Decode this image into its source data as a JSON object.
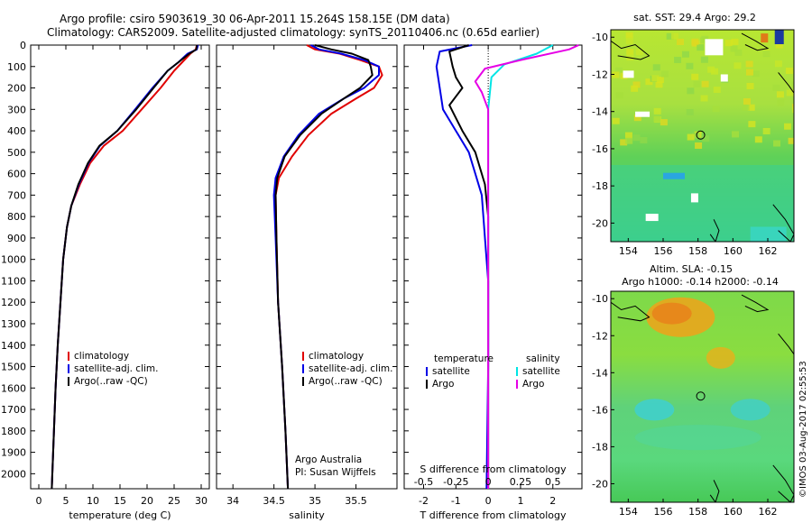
{
  "header": {
    "line1": "Argo profile: csiro 5903619_30 06-Apr-2011 15.264S 158.15E (DM data)",
    "line2": "Climatology: CARS2009. Satellite-adjusted climatology: synTS_20110406.nc (0.65d earlier)"
  },
  "footer_credit": "©IMOS 03-Aug-2017 02:55:53",
  "colors": {
    "climatology": "#e00000",
    "satellite": "#0000e6",
    "argo": "#000000",
    "satellite_sal": "#00e5e5",
    "argo_sal": "#e600e6"
  },
  "depth_axis": {
    "ticks": [
      0,
      100,
      200,
      300,
      400,
      500,
      600,
      700,
      800,
      900,
      1000,
      1100,
      1200,
      1300,
      1400,
      1500,
      1600,
      1700,
      1800,
      1900,
      2000
    ],
    "range": [
      0,
      2070
    ]
  },
  "chart_data": [
    {
      "type": "line",
      "id": "temperature",
      "xlabel": "temperature (deg C)",
      "xlim": [
        -1.5,
        31.5
      ],
      "xticks": [
        0,
        5,
        10,
        15,
        20,
        25,
        30
      ],
      "ylim": [
        0,
        2070
      ],
      "legend": [
        "climatology",
        "satellite-adj. clim.",
        "Argo(..raw -QC)"
      ],
      "series": [
        {
          "name": "climatology",
          "color": "#e00000",
          "points": [
            [
              29.2,
              0
            ],
            [
              29.0,
              20
            ],
            [
              28.0,
              40
            ],
            [
              26.5,
              80
            ],
            [
              25.0,
              120
            ],
            [
              22.5,
              200
            ],
            [
              19.0,
              300
            ],
            [
              15.5,
              400
            ],
            [
              12.0,
              470
            ],
            [
              9.5,
              550
            ],
            [
              7.6,
              650
            ],
            [
              6.0,
              750
            ],
            [
              5.2,
              850
            ],
            [
              4.5,
              1000
            ],
            [
              4.0,
              1200
            ],
            [
              3.5,
              1400
            ],
            [
              3.1,
              1600
            ],
            [
              2.8,
              1800
            ],
            [
              2.5,
              2000
            ],
            [
              2.4,
              2070
            ]
          ]
        },
        {
          "name": "satellite-adj. clim.",
          "color": "#0000e6",
          "points": [
            [
              29.4,
              0
            ],
            [
              29.2,
              20
            ],
            [
              27.5,
              40
            ],
            [
              25.8,
              80
            ],
            [
              23.8,
              120
            ],
            [
              21.0,
              200
            ],
            [
              17.8,
              300
            ],
            [
              14.5,
              400
            ],
            [
              11.3,
              470
            ],
            [
              9.2,
              550
            ],
            [
              7.4,
              650
            ],
            [
              6.0,
              750
            ],
            [
              5.2,
              850
            ],
            [
              4.5,
              1000
            ],
            [
              4.0,
              1200
            ],
            [
              3.5,
              1400
            ],
            [
              3.1,
              1600
            ],
            [
              2.8,
              1800
            ],
            [
              2.5,
              2000
            ],
            [
              2.4,
              2070
            ]
          ]
        },
        {
          "name": "Argo(..raw -QC)",
          "color": "#000000",
          "points": [
            [
              29.2,
              0
            ],
            [
              29.1,
              20
            ],
            [
              27.8,
              40
            ],
            [
              25.8,
              80
            ],
            [
              23.8,
              120
            ],
            [
              21.2,
              200
            ],
            [
              18.0,
              300
            ],
            [
              14.5,
              400
            ],
            [
              11.2,
              470
            ],
            [
              9.1,
              550
            ],
            [
              7.3,
              650
            ],
            [
              6.0,
              750
            ],
            [
              5.2,
              850
            ],
            [
              4.5,
              1000
            ],
            [
              4.0,
              1200
            ],
            [
              3.5,
              1400
            ],
            [
              3.1,
              1600
            ],
            [
              2.8,
              1800
            ],
            [
              2.5,
              2000
            ],
            [
              2.4,
              2070
            ]
          ]
        }
      ]
    },
    {
      "type": "line",
      "id": "salinity",
      "xlabel": "salinity",
      "xlim": [
        33.8,
        36.0
      ],
      "xticks": [
        34,
        34.5,
        35,
        35.5
      ],
      "ylim": [
        0,
        2070
      ],
      "legend": [
        "climatology",
        "satellite-adj. clim.",
        "Argo(..raw -QC)"
      ],
      "annotation": [
        "Argo Australia",
        "PI: Susan Wijffels"
      ],
      "series": [
        {
          "name": "climatology",
          "color": "#e00000",
          "points": [
            [
              34.9,
              0
            ],
            [
              35.0,
              20
            ],
            [
              35.3,
              40
            ],
            [
              35.55,
              70
            ],
            [
              35.78,
              100
            ],
            [
              35.82,
              140
            ],
            [
              35.72,
              200
            ],
            [
              35.5,
              250
            ],
            [
              35.2,
              320
            ],
            [
              34.92,
              420
            ],
            [
              34.72,
              520
            ],
            [
              34.56,
              620
            ],
            [
              34.52,
              700
            ],
            [
              34.53,
              900
            ],
            [
              34.55,
              1200
            ],
            [
              34.6,
              1500
            ],
            [
              34.64,
              1800
            ],
            [
              34.67,
              2070
            ]
          ]
        },
        {
          "name": "satellite-adj. clim.",
          "color": "#0000e6",
          "points": [
            [
              34.95,
              0
            ],
            [
              35.05,
              20
            ],
            [
              35.32,
              40
            ],
            [
              35.6,
              70
            ],
            [
              35.78,
              100
            ],
            [
              35.78,
              140
            ],
            [
              35.6,
              200
            ],
            [
              35.35,
              250
            ],
            [
              35.05,
              320
            ],
            [
              34.8,
              420
            ],
            [
              34.62,
              520
            ],
            [
              34.52,
              620
            ],
            [
              34.5,
              700
            ],
            [
              34.52,
              900
            ],
            [
              34.55,
              1200
            ],
            [
              34.6,
              1500
            ],
            [
              34.64,
              1800
            ],
            [
              34.67,
              2070
            ]
          ]
        },
        {
          "name": "Argo(..raw -QC)",
          "color": "#000000",
          "points": [
            [
              35.0,
              0
            ],
            [
              35.2,
              20
            ],
            [
              35.45,
              40
            ],
            [
              35.65,
              70
            ],
            [
              35.68,
              100
            ],
            [
              35.7,
              140
            ],
            [
              35.55,
              200
            ],
            [
              35.35,
              250
            ],
            [
              35.08,
              320
            ],
            [
              34.82,
              420
            ],
            [
              34.63,
              520
            ],
            [
              34.54,
              620
            ],
            [
              34.52,
              700
            ],
            [
              34.53,
              900
            ],
            [
              34.55,
              1200
            ],
            [
              34.6,
              1500
            ],
            [
              34.64,
              1800
            ],
            [
              34.67,
              2070
            ]
          ]
        }
      ]
    },
    {
      "type": "line",
      "id": "differences",
      "xlabel": "T difference from climatology",
      "xlabel_top": "S difference from climatology",
      "xlim": [
        -2.6,
        2.9
      ],
      "xticks": [
        -2,
        -1,
        0,
        1,
        2
      ],
      "xticks_top": [
        "-0.5",
        "-0.25",
        "0",
        "0.25",
        "0.5"
      ],
      "ylim": [
        0,
        2070
      ],
      "legend_titles": [
        "temperature",
        "salinity"
      ],
      "legend_temperature": [
        "satellite",
        "Argo"
      ],
      "legend_salinity": [
        "satellite",
        "Argo"
      ],
      "series": [
        {
          "name": "satellite",
          "group": "temperature",
          "color": "#0000e6",
          "points": [
            [
              -0.5,
              0
            ],
            [
              -1.5,
              30
            ],
            [
              -1.6,
              100
            ],
            [
              -1.5,
              200
            ],
            [
              -1.4,
              300
            ],
            [
              -1.0,
              400
            ],
            [
              -0.6,
              500
            ],
            [
              -0.4,
              600
            ],
            [
              -0.2,
              700
            ],
            [
              -0.1,
              900
            ],
            [
              0.0,
              1100
            ],
            [
              0.0,
              1500
            ],
            [
              -0.05,
              2070
            ]
          ]
        },
        {
          "name": "Argo",
          "group": "temperature",
          "color": "#000000",
          "points": [
            [
              -0.6,
              0
            ],
            [
              -1.2,
              30
            ],
            [
              -1.1,
              100
            ],
            [
              -1.0,
              150
            ],
            [
              -0.8,
              200
            ],
            [
              -1.2,
              280
            ],
            [
              -0.8,
              400
            ],
            [
              -0.4,
              500
            ],
            [
              -0.1,
              650
            ],
            [
              0.0,
              800
            ],
            [
              0.0,
              1100
            ],
            [
              0.0,
              2070
            ]
          ]
        },
        {
          "name": "satellite",
          "group": "salinity",
          "color": "#00e5e5",
          "points": [
            [
              2.0,
              0
            ],
            [
              1.5,
              40
            ],
            [
              0.5,
              90
            ],
            [
              0.1,
              150
            ],
            [
              0.0,
              300
            ],
            [
              0.0,
              500
            ],
            [
              0.0,
              1000
            ],
            [
              0.0,
              2070
            ]
          ]
        },
        {
          "name": "Argo",
          "group": "salinity",
          "color": "#e600e6",
          "points": [
            [
              2.8,
              0
            ],
            [
              2.5,
              20
            ],
            [
              1.0,
              70
            ],
            [
              -0.1,
              110
            ],
            [
              -0.4,
              170
            ],
            [
              -0.2,
              220
            ],
            [
              0.0,
              300
            ],
            [
              0.0,
              500
            ],
            [
              0.0,
              1000
            ],
            [
              0.0,
              2070
            ]
          ]
        }
      ]
    },
    {
      "type": "heatmap",
      "id": "sst_map",
      "title": "sat. SST: 29.4  Argo: 29.2",
      "xlim": [
        153,
        163.5
      ],
      "ylim": [
        -21,
        -9.6
      ],
      "xticks": [
        154,
        156,
        158,
        160,
        162
      ],
      "yticks": [
        -10,
        -12,
        -14,
        -16,
        -18,
        -20
      ],
      "marker": [
        158.15,
        -15.264
      ]
    },
    {
      "type": "heatmap",
      "id": "sla_map",
      "title": "Altim. SLA: -0.15",
      "subtitle": "Argo h1000: -0.14  h2000: -0.14",
      "xlim": [
        153,
        163.5
      ],
      "ylim": [
        -21,
        -9.6
      ],
      "xticks": [
        154,
        156,
        158,
        160,
        162
      ],
      "yticks": [
        -10,
        -12,
        -14,
        -16,
        -18,
        -20
      ],
      "marker": [
        158.15,
        -15.264
      ]
    }
  ]
}
